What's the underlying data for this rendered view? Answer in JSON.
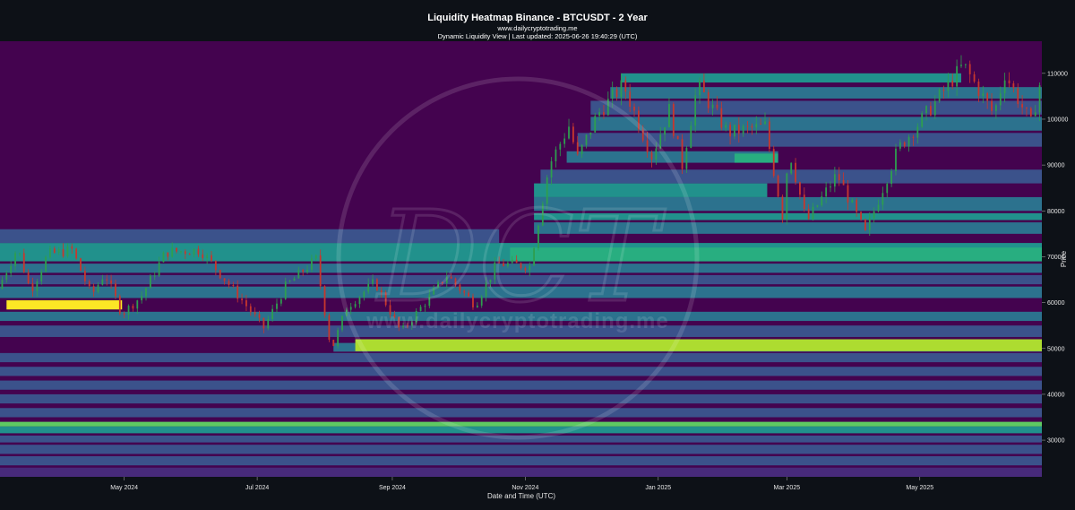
{
  "chart_data": {
    "type": "heatmap",
    "title": "Liquidity Heatmap Binance - BTCUSDT - 2 Year",
    "subtitle": "www.dailycryptotrading.me",
    "meta_line": "Dynamic Liquidity View | Last updated: 2025-06-26 19:40:29 (UTC)",
    "xlabel": "Date and Time (UTC)",
    "ylabel": "Price",
    "watermark_text": "www.dailycryptotrading.me",
    "watermark_monogram": "DCT",
    "x_range": [
      "2024-03-05",
      "2025-06-26"
    ],
    "y_range": [
      22000,
      117000
    ],
    "x_ticks": [
      {
        "date": "2024-05-01",
        "label": "May 2024"
      },
      {
        "date": "2024-07-01",
        "label": "Jul 2024"
      },
      {
        "date": "2024-09-01",
        "label": "Sep 2024"
      },
      {
        "date": "2024-11-01",
        "label": "Nov 2024"
      },
      {
        "date": "2025-01-01",
        "label": "Jan 2025"
      },
      {
        "date": "2025-03-01",
        "label": "Mar 2025"
      },
      {
        "date": "2025-05-01",
        "label": "May 2025"
      }
    ],
    "y_ticks": [
      {
        "value": 30000,
        "label": "30000"
      },
      {
        "value": 40000,
        "label": "40000"
      },
      {
        "value": 50000,
        "label": "50000"
      },
      {
        "value": 60000,
        "label": "60000"
      },
      {
        "value": 70000,
        "label": "70000"
      },
      {
        "value": 80000,
        "label": "80000"
      },
      {
        "value": 90000,
        "label": "90000"
      },
      {
        "value": 100000,
        "label": "100000"
      },
      {
        "value": 110000,
        "label": "110000"
      }
    ],
    "colors": {
      "background": "#0d1117",
      "plot_background": "#44034f",
      "candle_up": "#2e9e4f",
      "candle_down": "#c8372d"
    },
    "colorscale": [
      "#44034f",
      "#472a7a",
      "#3b528b",
      "#2c728e",
      "#21918c",
      "#28ae80",
      "#5ec962",
      "#addc30",
      "#fde725"
    ],
    "liquidity_zones": [
      {
        "start": "2024-03-05",
        "end": "2025-06-26",
        "low": 22000,
        "high": 24000,
        "intensity": 0.18
      },
      {
        "start": "2024-03-05",
        "end": "2025-06-26",
        "low": 24500,
        "high": 26500,
        "intensity": 0.22
      },
      {
        "start": "2024-03-05",
        "end": "2025-06-26",
        "low": 27000,
        "high": 29000,
        "intensity": 0.2
      },
      {
        "start": "2024-03-05",
        "end": "2025-06-26",
        "low": 29500,
        "high": 31000,
        "intensity": 0.25
      },
      {
        "start": "2024-03-05",
        "end": "2025-06-26",
        "low": 31500,
        "high": 33000,
        "intensity": 0.55
      },
      {
        "start": "2024-03-05",
        "end": "2025-06-26",
        "low": 33000,
        "high": 34000,
        "intensity": 0.7
      },
      {
        "start": "2024-03-05",
        "end": "2025-06-26",
        "low": 35000,
        "high": 37000,
        "intensity": 0.2
      },
      {
        "start": "2024-03-05",
        "end": "2025-06-26",
        "low": 38000,
        "high": 40000,
        "intensity": 0.22
      },
      {
        "start": "2024-03-05",
        "end": "2025-06-26",
        "low": 41000,
        "high": 43000,
        "intensity": 0.2
      },
      {
        "start": "2024-03-05",
        "end": "2025-06-26",
        "low": 44000,
        "high": 46000,
        "intensity": 0.22
      },
      {
        "start": "2024-03-05",
        "end": "2025-06-26",
        "low": 47000,
        "high": 49000,
        "intensity": 0.25
      },
      {
        "start": "2024-08-05",
        "end": "2025-06-26",
        "low": 49300,
        "high": 51200,
        "intensity": 0.35
      },
      {
        "start": "2024-08-15",
        "end": "2025-06-26",
        "low": 49400,
        "high": 52000,
        "intensity": 0.86
      },
      {
        "start": "2024-03-05",
        "end": "2025-06-26",
        "low": 52500,
        "high": 55000,
        "intensity": 0.3
      },
      {
        "start": "2024-03-05",
        "end": "2025-06-26",
        "low": 56000,
        "high": 58000,
        "intensity": 0.38
      },
      {
        "start": "2024-03-08",
        "end": "2024-04-30",
        "low": 58500,
        "high": 60500,
        "intensity": 0.96
      },
      {
        "start": "2024-03-05",
        "end": "2025-06-26",
        "low": 61000,
        "high": 63500,
        "intensity": 0.32
      },
      {
        "start": "2024-03-05",
        "end": "2025-06-26",
        "low": 64000,
        "high": 66000,
        "intensity": 0.3
      },
      {
        "start": "2024-03-05",
        "end": "2025-06-26",
        "low": 66500,
        "high": 68500,
        "intensity": 0.38
      },
      {
        "start": "2024-03-05",
        "end": "2025-06-26",
        "low": 69000,
        "high": 73000,
        "intensity": 0.48
      },
      {
        "start": "2024-10-25",
        "end": "2025-06-26",
        "low": 69000,
        "high": 72000,
        "intensity": 0.66
      },
      {
        "start": "2024-03-05",
        "end": "2024-10-20",
        "low": 73000,
        "high": 76000,
        "intensity": 0.28
      },
      {
        "start": "2024-11-05",
        "end": "2025-06-26",
        "low": 75000,
        "high": 77500,
        "intensity": 0.4
      },
      {
        "start": "2024-11-05",
        "end": "2025-06-26",
        "low": 78000,
        "high": 79500,
        "intensity": 0.55
      },
      {
        "start": "2024-11-05",
        "end": "2025-06-26",
        "low": 80000,
        "high": 83000,
        "intensity": 0.38
      },
      {
        "start": "2024-11-05",
        "end": "2025-02-20",
        "low": 83000,
        "high": 86000,
        "intensity": 0.45
      },
      {
        "start": "2024-11-08",
        "end": "2025-06-26",
        "low": 86000,
        "high": 89000,
        "intensity": 0.3
      },
      {
        "start": "2024-11-20",
        "end": "2025-02-25",
        "low": 90500,
        "high": 93000,
        "intensity": 0.35
      },
      {
        "start": "2025-02-05",
        "end": "2025-02-25",
        "low": 90500,
        "high": 92500,
        "intensity": 0.62
      },
      {
        "start": "2024-11-25",
        "end": "2025-06-26",
        "low": 94000,
        "high": 97000,
        "intensity": 0.3
      },
      {
        "start": "2024-12-01",
        "end": "2025-06-26",
        "low": 97500,
        "high": 100500,
        "intensity": 0.33
      },
      {
        "start": "2024-12-01",
        "end": "2025-06-26",
        "low": 101000,
        "high": 104000,
        "intensity": 0.3
      },
      {
        "start": "2024-12-10",
        "end": "2025-06-26",
        "low": 104500,
        "high": 107000,
        "intensity": 0.4
      },
      {
        "start": "2024-12-15",
        "end": "2025-05-20",
        "low": 108000,
        "high": 110000,
        "intensity": 0.45
      }
    ],
    "price_path": [
      {
        "date": "2024-03-05",
        "price": 63000
      },
      {
        "date": "2024-03-14",
        "price": 72000
      },
      {
        "date": "2024-03-20",
        "price": 62500
      },
      {
        "date": "2024-03-28",
        "price": 70500
      },
      {
        "date": "2024-04-08",
        "price": 71500
      },
      {
        "date": "2024-04-17",
        "price": 61500
      },
      {
        "date": "2024-04-23",
        "price": 66500
      },
      {
        "date": "2024-05-01",
        "price": 57500
      },
      {
        "date": "2024-05-10",
        "price": 61500
      },
      {
        "date": "2024-05-21",
        "price": 71000
      },
      {
        "date": "2024-06-06",
        "price": 71500
      },
      {
        "date": "2024-06-25",
        "price": 60500
      },
      {
        "date": "2024-07-05",
        "price": 54500
      },
      {
        "date": "2024-07-15",
        "price": 63500
      },
      {
        "date": "2024-07-29",
        "price": 69500
      },
      {
        "date": "2024-08-05",
        "price": 49500
      },
      {
        "date": "2024-08-12",
        "price": 59000
      },
      {
        "date": "2024-08-25",
        "price": 64500
      },
      {
        "date": "2024-09-06",
        "price": 53500
      },
      {
        "date": "2024-09-27",
        "price": 66000
      },
      {
        "date": "2024-10-10",
        "price": 59500
      },
      {
        "date": "2024-10-20",
        "price": 68500
      },
      {
        "date": "2024-11-04",
        "price": 68000
      },
      {
        "date": "2024-11-13",
        "price": 90000
      },
      {
        "date": "2024-11-22",
        "price": 98500
      },
      {
        "date": "2024-11-26",
        "price": 91500
      },
      {
        "date": "2024-12-05",
        "price": 101000
      },
      {
        "date": "2024-12-17",
        "price": 107500
      },
      {
        "date": "2024-12-30",
        "price": 92000
      },
      {
        "date": "2025-01-07",
        "price": 102000
      },
      {
        "date": "2025-01-13",
        "price": 90000
      },
      {
        "date": "2025-01-20",
        "price": 107500
      },
      {
        "date": "2025-02-03",
        "price": 97000
      },
      {
        "date": "2025-02-20",
        "price": 98500
      },
      {
        "date": "2025-02-28",
        "price": 79000
      },
      {
        "date": "2025-03-03",
        "price": 93500
      },
      {
        "date": "2025-03-11",
        "price": 77500
      },
      {
        "date": "2025-03-25",
        "price": 88000
      },
      {
        "date": "2025-04-07",
        "price": 75000
      },
      {
        "date": "2025-04-15",
        "price": 85000
      },
      {
        "date": "2025-04-22",
        "price": 93500
      },
      {
        "date": "2025-05-08",
        "price": 103000
      },
      {
        "date": "2025-05-22",
        "price": 111800
      },
      {
        "date": "2025-06-05",
        "price": 101000
      },
      {
        "date": "2025-06-10",
        "price": 110000
      },
      {
        "date": "2025-06-22",
        "price": 99000
      },
      {
        "date": "2025-06-26",
        "price": 107500
      }
    ]
  }
}
